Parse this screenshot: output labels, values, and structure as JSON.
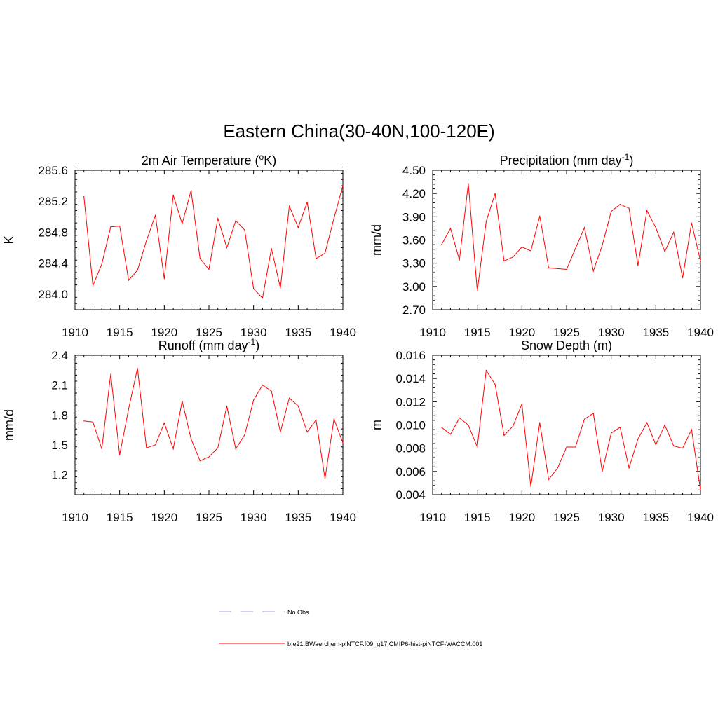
{
  "title": "Eastern China(30-40N,100-120E)",
  "legend": {
    "placement": "bottom-center",
    "items": [
      {
        "label": "No Obs",
        "color": "#9c9ce6",
        "style": "dashed"
      },
      {
        "label": "b.e21.BWaerchem-piNTCF.f09_g17.CMIP6-hist-piNTCF-WACCM.001",
        "color": "#ff0000",
        "style": "solid"
      }
    ]
  },
  "chart_data": [
    {
      "type": "line",
      "title": {
        "main": "2m Air Temperature (",
        "sup": "o",
        "rest": "K)"
      },
      "ylabel": "K",
      "xlim": [
        1910,
        1940
      ],
      "ylim": [
        283.8,
        285.6
      ],
      "yticks": [
        284.0,
        284.4,
        284.8,
        285.2,
        285.6
      ],
      "ytick_labels": [
        "284.0",
        "284.4",
        "284.8",
        "285.2",
        "285.6"
      ],
      "xticks": [
        1910,
        1915,
        1920,
        1925,
        1930,
        1935,
        1940
      ],
      "xtick_labels": [
        "1910",
        "1915",
        "1920",
        "1925",
        "1930",
        "1935",
        "1940"
      ],
      "series": [
        {
          "color": "#ff0000",
          "x": [
            1911,
            1912,
            1913,
            1914,
            1915,
            1916,
            1917,
            1918,
            1919,
            1920,
            1921,
            1922,
            1923,
            1924,
            1925,
            1926,
            1927,
            1928,
            1929,
            1930,
            1931,
            1932,
            1933,
            1934,
            1935,
            1936,
            1937,
            1938,
            1939,
            1940
          ],
          "values": [
            285.26,
            284.11,
            284.39,
            284.87,
            284.88,
            284.18,
            284.31,
            284.69,
            285.02,
            284.2,
            285.28,
            284.91,
            285.34,
            284.46,
            284.32,
            284.98,
            284.6,
            284.95,
            284.83,
            284.07,
            283.95,
            284.59,
            284.08,
            285.14,
            284.86,
            285.19,
            284.46,
            284.53,
            284.98,
            285.4
          ]
        }
      ]
    },
    {
      "type": "line",
      "title": {
        "main": "Precipitation (mm day",
        "sup": "-1",
        "rest": ")"
      },
      "ylabel": "mm/d",
      "xlim": [
        1910,
        1940
      ],
      "ylim": [
        2.7,
        4.5
      ],
      "yticks": [
        2.7,
        3.0,
        3.3,
        3.6,
        3.9,
        4.2,
        4.5
      ],
      "ytick_labels": [
        "2.70",
        "3.00",
        "3.30",
        "3.60",
        "3.90",
        "4.20",
        "4.50"
      ],
      "xticks": [
        1910,
        1915,
        1920,
        1925,
        1930,
        1935,
        1940
      ],
      "xtick_labels": [
        "1910",
        "1915",
        "1920",
        "1925",
        "1930",
        "1935",
        "1940"
      ],
      "series": [
        {
          "color": "#ff0000",
          "x": [
            1911,
            1912,
            1913,
            1914,
            1915,
            1916,
            1917,
            1918,
            1919,
            1920,
            1921,
            1922,
            1923,
            1924,
            1925,
            1926,
            1927,
            1928,
            1929,
            1930,
            1931,
            1932,
            1933,
            1934,
            1935,
            1936,
            1937,
            1938,
            1939,
            1940
          ],
          "values": [
            3.54,
            3.75,
            3.34,
            4.33,
            2.94,
            3.84,
            4.2,
            3.33,
            3.38,
            3.51,
            3.46,
            3.91,
            3.24,
            3.23,
            3.22,
            3.49,
            3.76,
            3.2,
            3.53,
            3.97,
            4.06,
            4.01,
            3.27,
            3.98,
            3.76,
            3.45,
            3.7,
            3.11,
            3.82,
            3.33
          ]
        }
      ]
    },
    {
      "type": "line",
      "title": {
        "main": "Runoff (mm day",
        "sup": "-1",
        "rest": ")"
      },
      "ylabel": "mm/d",
      "xlim": [
        1910,
        1940
      ],
      "ylim": [
        1.0,
        2.4
      ],
      "yticks": [
        1.2,
        1.5,
        1.8,
        2.1,
        2.4
      ],
      "ytick_labels": [
        "1.2",
        "1.5",
        "1.8",
        "2.1",
        "2.4"
      ],
      "xticks": [
        1910,
        1915,
        1920,
        1925,
        1930,
        1935,
        1940
      ],
      "xtick_labels": [
        "1910",
        "1915",
        "1920",
        "1925",
        "1930",
        "1935",
        "1940"
      ],
      "series": [
        {
          "color": "#ff0000",
          "x": [
            1911,
            1912,
            1913,
            1914,
            1915,
            1916,
            1917,
            1918,
            1919,
            1920,
            1921,
            1922,
            1923,
            1924,
            1925,
            1926,
            1927,
            1928,
            1929,
            1930,
            1931,
            1932,
            1933,
            1934,
            1935,
            1936,
            1937,
            1938,
            1939,
            1940
          ],
          "values": [
            1.74,
            1.73,
            1.46,
            2.21,
            1.4,
            1.86,
            2.27,
            1.47,
            1.5,
            1.72,
            1.46,
            1.94,
            1.56,
            1.34,
            1.38,
            1.47,
            1.89,
            1.46,
            1.6,
            1.95,
            2.1,
            2.04,
            1.63,
            1.97,
            1.89,
            1.63,
            1.75,
            1.16,
            1.76,
            1.52
          ]
        }
      ]
    },
    {
      "type": "line",
      "title": {
        "main": "Snow Depth (m)",
        "sup": "",
        "rest": ""
      },
      "ylabel": "m",
      "xlim": [
        1910,
        1940
      ],
      "ylim": [
        0.004,
        0.016
      ],
      "yticks": [
        0.004,
        0.006,
        0.008,
        0.01,
        0.012,
        0.014,
        0.016
      ],
      "ytick_labels": [
        "0.004",
        "0.006",
        "0.008",
        "0.010",
        "0.012",
        "0.014",
        "0.016"
      ],
      "xticks": [
        1910,
        1915,
        1920,
        1925,
        1930,
        1935,
        1940
      ],
      "xtick_labels": [
        "1910",
        "1915",
        "1920",
        "1925",
        "1930",
        "1935",
        "1940"
      ],
      "series": [
        {
          "color": "#ff0000",
          "x": [
            1911,
            1912,
            1913,
            1914,
            1915,
            1916,
            1917,
            1918,
            1919,
            1920,
            1921,
            1922,
            1923,
            1924,
            1925,
            1926,
            1927,
            1928,
            1929,
            1930,
            1931,
            1932,
            1933,
            1934,
            1935,
            1936,
            1937,
            1938,
            1939,
            1940
          ],
          "values": [
            0.0098,
            0.0092,
            0.0106,
            0.01,
            0.0081,
            0.0147,
            0.0135,
            0.0091,
            0.0099,
            0.0118,
            0.0047,
            0.0102,
            0.0053,
            0.0063,
            0.0081,
            0.0081,
            0.0105,
            0.011,
            0.006,
            0.0093,
            0.0098,
            0.0063,
            0.0088,
            0.0102,
            0.0083,
            0.01,
            0.0082,
            0.008,
            0.0096,
            0.0044
          ]
        }
      ]
    }
  ]
}
